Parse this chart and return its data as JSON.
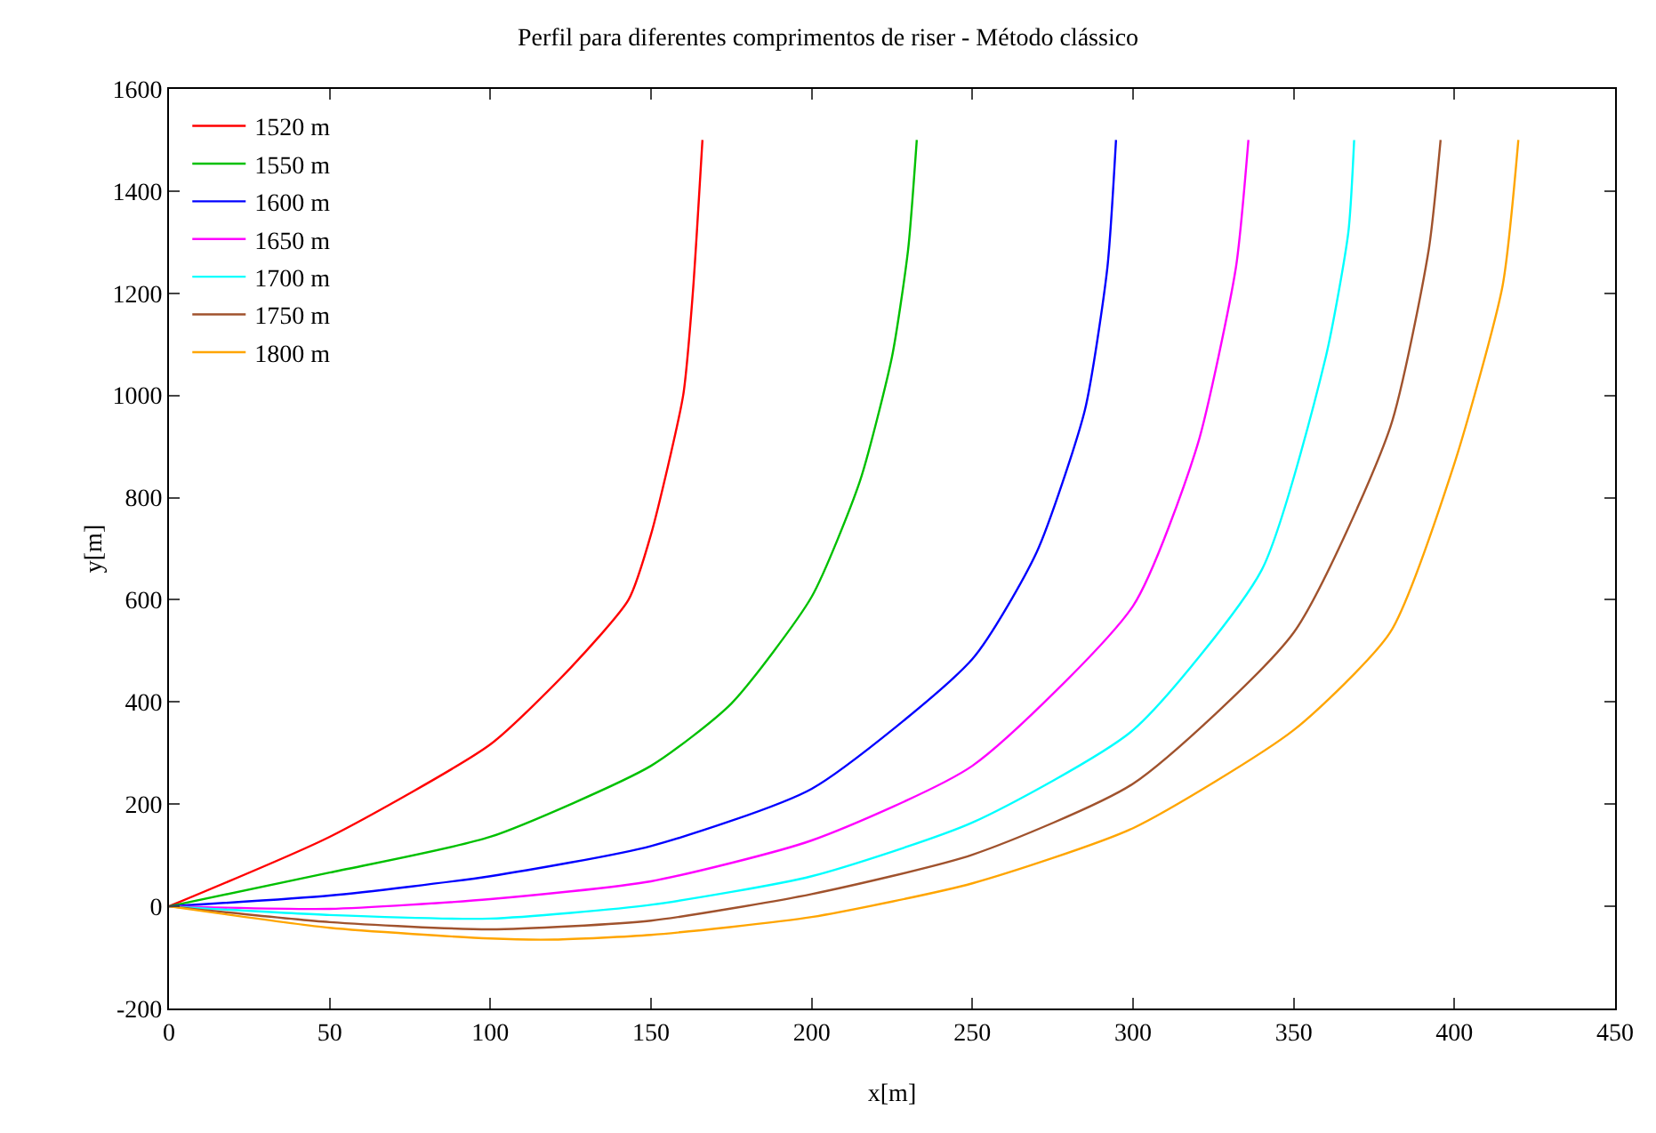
{
  "chart_data": {
    "type": "line",
    "title": "Perfil para diferentes comprimentos de riser - Método clássico",
    "xlabel": "x[m]",
    "ylabel": "y[m]",
    "xlim": [
      0,
      450
    ],
    "xticks": [
      0,
      50,
      100,
      150,
      200,
      250,
      300,
      350,
      400,
      450
    ],
    "ylim": [
      -200,
      1600
    ],
    "yticks": [
      -200,
      0,
      200,
      400,
      600,
      800,
      1000,
      1200,
      1400,
      1600
    ],
    "grid": false,
    "legend": "top left",
    "marker": "none",
    "line_style": "solid",
    "series": [
      {
        "name": "1520 m",
        "color": "#ff0000",
        "x": [
          0,
          50,
          100,
          125,
          143,
          150,
          160,
          163,
          166
        ],
        "values": [
          0,
          136,
          317,
          467,
          600,
          728,
          1000,
          1200,
          1500
        ]
      },
      {
        "name": "1550 m",
        "color": "#00c000",
        "x": [
          0,
          50,
          100,
          150,
          175,
          200,
          215,
          225,
          230,
          232.7
        ],
        "values": [
          0,
          66,
          136,
          275,
          397,
          606,
          832,
          1076,
          1285,
          1500
        ]
      },
      {
        "name": "1600 m",
        "color": "#0000ff",
        "x": [
          0,
          50,
          100,
          150,
          200,
          250,
          270,
          285,
          292,
          294.7
        ],
        "values": [
          0,
          21,
          59,
          118,
          230,
          484,
          693,
          971,
          1250,
          1500
        ]
      },
      {
        "name": "1650 m",
        "color": "#ff00ff",
        "x": [
          0,
          50,
          100,
          150,
          200,
          250,
          300,
          320,
          332,
          335.9
        ],
        "values": [
          0,
          -5,
          14,
          49,
          129,
          275,
          588,
          902,
          1250,
          1500
        ]
      },
      {
        "name": "1700 m",
        "color": "#00ffff",
        "x": [
          0,
          50,
          100,
          150,
          200,
          250,
          300,
          340,
          360,
          367,
          368.8
        ],
        "values": [
          0,
          -17,
          -24,
          3,
          59,
          164,
          345,
          658,
          1076,
          1320,
          1500
        ]
      },
      {
        "name": "1750 m",
        "color": "#a0522d",
        "x": [
          0,
          50,
          100,
          150,
          200,
          250,
          300,
          350,
          380,
          392,
          395.7
        ],
        "values": [
          0,
          -31,
          -45,
          -28,
          24,
          101,
          240,
          536,
          937,
          1285,
          1500
        ]
      },
      {
        "name": "1800 m",
        "color": "#ffa500",
        "x": [
          0,
          50,
          100,
          120,
          150,
          200,
          250,
          300,
          350,
          380,
          400,
          415,
          419.9
        ],
        "values": [
          0,
          -42,
          -63,
          -65,
          -56,
          -21,
          45,
          153,
          345,
          536,
          867,
          1215,
          1500
        ]
      }
    ]
  }
}
